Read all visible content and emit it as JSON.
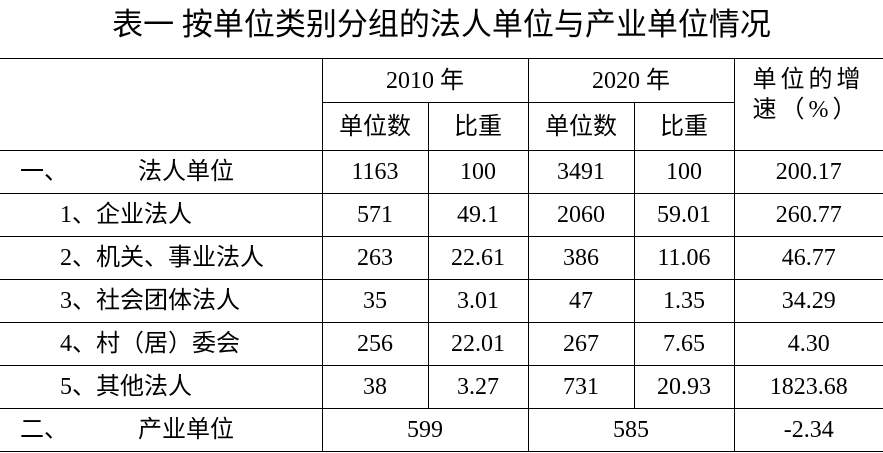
{
  "title": "表一 按单位类别分组的法人单位与产业单位情况",
  "table": {
    "header": {
      "year_2010": "2010 年",
      "year_2020": "2020 年",
      "growth": "单位的增速（%）",
      "sub": [
        "单位数",
        "比重",
        "单位数",
        "比重"
      ]
    },
    "total_legal": {
      "marker": "一、",
      "label": "法人单位",
      "cells": [
        "1163",
        "100",
        "3491",
        "100",
        "200.17"
      ]
    },
    "rows": [
      {
        "label": "1、企业法人",
        "cells": [
          "571",
          "49.1",
          "2060",
          "59.01",
          "260.77"
        ]
      },
      {
        "label": "2、机关、事业法人",
        "cells": [
          "263",
          "22.61",
          "386",
          "11.06",
          "46.77"
        ]
      },
      {
        "label": "3、社会团体法人",
        "cells": [
          "35",
          "3.01",
          "47",
          "1.35",
          "34.29"
        ]
      },
      {
        "label": "4、村（居）委会",
        "cells": [
          "256",
          "22.01",
          "267",
          "7.65",
          "4.30"
        ]
      },
      {
        "label": "5、其他法人",
        "cells": [
          "38",
          "3.27",
          "731",
          "20.93",
          "1823.68"
        ]
      }
    ],
    "industry": {
      "marker": "二、",
      "label": "产业单位",
      "cells": [
        "599",
        "585",
        "-2.34"
      ]
    }
  }
}
